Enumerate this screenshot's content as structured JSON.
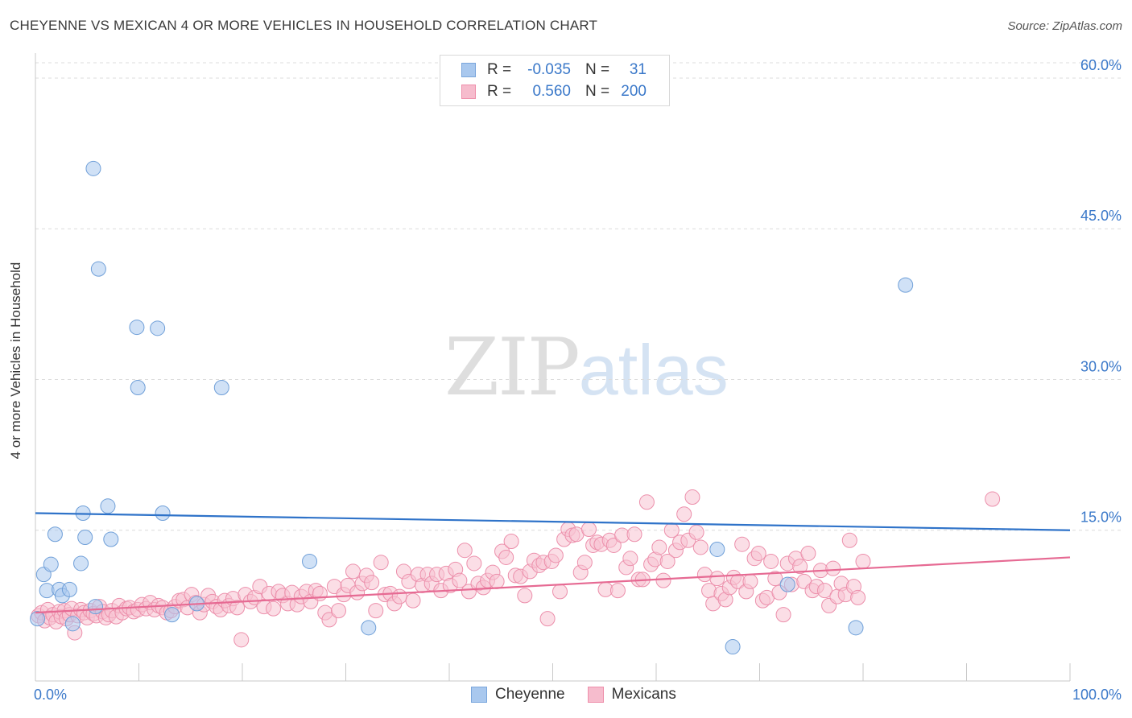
{
  "header": {
    "title": "CHEYENNE VS MEXICAN 4 OR MORE VEHICLES IN HOUSEHOLD CORRELATION CHART",
    "source": "Source: ZipAtlas.com"
  },
  "watermark": {
    "zip": "ZIP",
    "atlas": "atlas"
  },
  "legend": {
    "rows": [
      {
        "r_label": "R =",
        "r_value": "-0.035",
        "n_label": "N =",
        "n_value": "31",
        "color": "#a9c8ee",
        "border": "#7aa6dc"
      },
      {
        "r_label": "R =",
        "r_value": "0.560",
        "n_label": "N =",
        "n_value": "200",
        "color": "#f6bccd",
        "border": "#ee8fab"
      }
    ]
  },
  "colors": {
    "cheyenne_fill": "#a9c8ee",
    "cheyenne_stroke": "#6f9fd8",
    "cheyenne_line": "#2f73c9",
    "mexicans_fill": "#f7c3d2",
    "mexicans_stroke": "#ec8fab",
    "mexicans_line": "#e66a93",
    "tick_label": "#3a78c9"
  },
  "chart_data": {
    "type": "scatter",
    "title": "CHEYENNE VS MEXICAN 4 OR MORE VEHICLES IN HOUSEHOLD CORRELATION CHART",
    "xlabel": "",
    "ylabel": "4 or more Vehicles in Household",
    "xlim": [
      0,
      100
    ],
    "ylim": [
      0,
      62
    ],
    "x_tick_labels": [
      "0.0%",
      "100.0%"
    ],
    "y_ticks": [
      15,
      30,
      45,
      60
    ],
    "y_tick_labels": [
      "15.0%",
      "30.0%",
      "45.0%",
      "60.0%"
    ],
    "grid": true,
    "legend_placement": "bottom-center",
    "series": [
      {
        "name": "Cheyenne",
        "r": -0.035,
        "n": 31,
        "trend": {
          "x": [
            0,
            100
          ],
          "y": [
            16.7,
            15.0
          ]
        },
        "points": [
          [
            0.2,
            6.2
          ],
          [
            0.8,
            10.6
          ],
          [
            1.1,
            9.0
          ],
          [
            1.5,
            11.6
          ],
          [
            1.9,
            14.6
          ],
          [
            2.3,
            9.1
          ],
          [
            2.6,
            8.5
          ],
          [
            3.3,
            9.1
          ],
          [
            3.6,
            5.7
          ],
          [
            4.4,
            11.7
          ],
          [
            4.6,
            16.7
          ],
          [
            4.8,
            14.3
          ],
          [
            5.6,
            51.0
          ],
          [
            5.8,
            7.4
          ],
          [
            6.1,
            41.0
          ],
          [
            7.0,
            17.4
          ],
          [
            7.3,
            14.1
          ],
          [
            9.8,
            35.2
          ],
          [
            9.9,
            29.2
          ],
          [
            11.8,
            35.1
          ],
          [
            12.3,
            16.7
          ],
          [
            13.2,
            6.6
          ],
          [
            15.6,
            7.7
          ],
          [
            18.0,
            29.2
          ],
          [
            26.5,
            11.9
          ],
          [
            32.2,
            5.3
          ],
          [
            65.9,
            13.1
          ],
          [
            67.4,
            3.4
          ],
          [
            72.7,
            9.6
          ],
          [
            79.3,
            5.3
          ],
          [
            84.1,
            39.4
          ]
        ]
      },
      {
        "name": "Mexicans",
        "r": 0.56,
        "n": 200,
        "trend": {
          "x": [
            0,
            100
          ],
          "y": [
            6.8,
            12.3
          ]
        },
        "points": [
          [
            0.3,
            6.5
          ],
          [
            0.6,
            6.8
          ],
          [
            0.9,
            6.0
          ],
          [
            1.2,
            7.1
          ],
          [
            1.4,
            6.3
          ],
          [
            1.7,
            6.6
          ],
          [
            2.0,
            5.9
          ],
          [
            2.3,
            6.9
          ],
          [
            2.5,
            6.4
          ],
          [
            2.8,
            7.0
          ],
          [
            3.0,
            6.2
          ],
          [
            3.3,
            6.6
          ],
          [
            3.5,
            7.2
          ],
          [
            3.8,
            4.8
          ],
          [
            4.1,
            6.5
          ],
          [
            4.4,
            7.1
          ],
          [
            4.7,
            6.8
          ],
          [
            5.0,
            6.3
          ],
          [
            5.3,
            7.0
          ],
          [
            5.6,
            6.7
          ],
          [
            5.9,
            6.5
          ],
          [
            6.2,
            7.4
          ],
          [
            6.5,
            6.9
          ],
          [
            6.8,
            6.3
          ],
          [
            7.1,
            6.6
          ],
          [
            7.4,
            7.0
          ],
          [
            7.8,
            6.4
          ],
          [
            8.1,
            7.5
          ],
          [
            8.4,
            6.8
          ],
          [
            8.8,
            7.2
          ],
          [
            9.1,
            7.3
          ],
          [
            9.5,
            6.9
          ],
          [
            9.9,
            7.1
          ],
          [
            10.3,
            7.6
          ],
          [
            10.7,
            7.2
          ],
          [
            11.1,
            7.8
          ],
          [
            11.5,
            7.1
          ],
          [
            11.9,
            7.5
          ],
          [
            12.3,
            7.3
          ],
          [
            12.7,
            6.8
          ],
          [
            13.1,
            7.0
          ],
          [
            13.5,
            7.4
          ],
          [
            13.9,
            8.0
          ],
          [
            14.3,
            8.1
          ],
          [
            14.7,
            7.3
          ],
          [
            15.1,
            8.6
          ],
          [
            15.5,
            7.8
          ],
          [
            15.9,
            6.8
          ],
          [
            16.3,
            7.6
          ],
          [
            16.7,
            8.5
          ],
          [
            17.1,
            7.9
          ],
          [
            17.5,
            7.4
          ],
          [
            17.9,
            7.1
          ],
          [
            18.3,
            8.0
          ],
          [
            18.7,
            7.5
          ],
          [
            19.1,
            8.2
          ],
          [
            19.5,
            7.3
          ],
          [
            19.9,
            4.1
          ],
          [
            20.3,
            8.6
          ],
          [
            20.8,
            7.9
          ],
          [
            21.2,
            8.3
          ],
          [
            21.7,
            9.4
          ],
          [
            22.1,
            7.4
          ],
          [
            22.6,
            8.7
          ],
          [
            23.0,
            7.2
          ],
          [
            23.5,
            8.9
          ],
          [
            23.9,
            8.5
          ],
          [
            24.4,
            7.7
          ],
          [
            24.8,
            8.8
          ],
          [
            25.3,
            7.6
          ],
          [
            25.7,
            8.4
          ],
          [
            26.2,
            8.9
          ],
          [
            26.6,
            7.9
          ],
          [
            27.1,
            9.0
          ],
          [
            27.5,
            8.7
          ],
          [
            28.0,
            6.8
          ],
          [
            28.4,
            6.1
          ],
          [
            28.9,
            9.4
          ],
          [
            29.3,
            7.0
          ],
          [
            29.8,
            8.6
          ],
          [
            30.2,
            9.5
          ],
          [
            30.7,
            10.9
          ],
          [
            31.1,
            8.8
          ],
          [
            31.6,
            9.7
          ],
          [
            32.0,
            10.5
          ],
          [
            32.5,
            9.8
          ],
          [
            32.9,
            7.0
          ],
          [
            33.4,
            11.8
          ],
          [
            33.8,
            8.6
          ],
          [
            34.3,
            8.7
          ],
          [
            34.7,
            7.7
          ],
          [
            35.2,
            8.4
          ],
          [
            35.6,
            10.9
          ],
          [
            36.1,
            9.9
          ],
          [
            36.5,
            8.0
          ],
          [
            37.0,
            10.6
          ],
          [
            37.4,
            9.5
          ],
          [
            37.9,
            10.6
          ],
          [
            38.3,
            9.7
          ],
          [
            38.8,
            10.6
          ],
          [
            39.2,
            9.0
          ],
          [
            39.7,
            10.7
          ],
          [
            40.1,
            9.5
          ],
          [
            40.6,
            11.1
          ],
          [
            41.0,
            10.0
          ],
          [
            41.5,
            13.0
          ],
          [
            41.9,
            8.9
          ],
          [
            42.4,
            11.7
          ],
          [
            42.8,
            9.7
          ],
          [
            43.3,
            9.3
          ],
          [
            43.7,
            10.0
          ],
          [
            44.2,
            10.8
          ],
          [
            44.6,
            9.9
          ],
          [
            45.1,
            12.9
          ],
          [
            45.5,
            12.3
          ],
          [
            46.0,
            13.9
          ],
          [
            46.4,
            10.5
          ],
          [
            46.9,
            10.4
          ],
          [
            47.3,
            8.5
          ],
          [
            47.8,
            10.9
          ],
          [
            48.2,
            12.0
          ],
          [
            48.7,
            11.5
          ],
          [
            49.1,
            11.8
          ],
          [
            49.5,
            6.2
          ],
          [
            49.9,
            11.9
          ],
          [
            50.3,
            12.5
          ],
          [
            50.7,
            8.9
          ],
          [
            51.1,
            14.1
          ],
          [
            51.5,
            15.1
          ],
          [
            51.9,
            14.5
          ],
          [
            52.3,
            14.6
          ],
          [
            52.7,
            10.8
          ],
          [
            53.1,
            11.8
          ],
          [
            53.5,
            15.1
          ],
          [
            53.9,
            13.5
          ],
          [
            54.3,
            13.8
          ],
          [
            54.7,
            13.6
          ],
          [
            55.1,
            9.1
          ],
          [
            55.5,
            14.0
          ],
          [
            55.9,
            13.5
          ],
          [
            56.3,
            9.0
          ],
          [
            56.7,
            14.5
          ],
          [
            57.1,
            11.3
          ],
          [
            57.5,
            12.2
          ],
          [
            57.9,
            14.6
          ],
          [
            58.3,
            10.1
          ],
          [
            58.7,
            10.1
          ],
          [
            59.1,
            17.8
          ],
          [
            59.5,
            11.6
          ],
          [
            59.9,
            12.1
          ],
          [
            60.3,
            13.3
          ],
          [
            60.7,
            10.0
          ],
          [
            61.1,
            11.9
          ],
          [
            61.5,
            15.0
          ],
          [
            61.9,
            13.0
          ],
          [
            62.3,
            13.8
          ],
          [
            62.7,
            16.6
          ],
          [
            63.1,
            14.0
          ],
          [
            63.5,
            18.3
          ],
          [
            63.9,
            14.8
          ],
          [
            64.3,
            13.3
          ],
          [
            64.7,
            10.6
          ],
          [
            65.1,
            9.0
          ],
          [
            65.5,
            7.7
          ],
          [
            65.9,
            10.2
          ],
          [
            66.3,
            8.7
          ],
          [
            66.7,
            8.1
          ],
          [
            67.1,
            9.3
          ],
          [
            67.5,
            10.3
          ],
          [
            67.9,
            9.9
          ],
          [
            68.3,
            13.6
          ],
          [
            68.7,
            8.9
          ],
          [
            69.1,
            9.9
          ],
          [
            69.5,
            12.2
          ],
          [
            69.9,
            12.7
          ],
          [
            70.3,
            8.0
          ],
          [
            70.7,
            8.3
          ],
          [
            71.1,
            11.9
          ],
          [
            71.5,
            10.2
          ],
          [
            71.9,
            8.8
          ],
          [
            72.3,
            6.6
          ],
          [
            72.7,
            11.7
          ],
          [
            73.1,
            9.6
          ],
          [
            73.5,
            12.2
          ],
          [
            73.9,
            11.4
          ],
          [
            74.3,
            9.9
          ],
          [
            74.7,
            12.7
          ],
          [
            75.1,
            9.0
          ],
          [
            75.5,
            9.4
          ],
          [
            75.9,
            11.0
          ],
          [
            76.3,
            9.0
          ],
          [
            76.7,
            7.5
          ],
          [
            77.1,
            11.2
          ],
          [
            77.5,
            8.4
          ],
          [
            77.9,
            9.7
          ],
          [
            78.3,
            8.6
          ],
          [
            78.7,
            14.0
          ],
          [
            79.1,
            9.4
          ],
          [
            79.5,
            8.3
          ],
          [
            80.0,
            11.9
          ],
          [
            92.5,
            18.1
          ]
        ]
      }
    ]
  }
}
